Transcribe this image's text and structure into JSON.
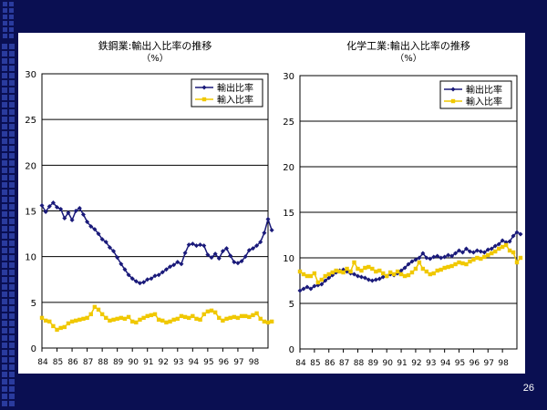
{
  "slide": {
    "page_number": "26",
    "colors": {
      "background": "#0a0f52",
      "accent_squares": "#2a3b9e",
      "card": "#ffffff"
    }
  },
  "chart_data": [
    {
      "type": "line",
      "title": "鉄鋼業:輸出入比率の推移",
      "subtitle": "（%）",
      "xlabel": "",
      "ylabel": "",
      "ylim": [
        0,
        30
      ],
      "yticks": [
        0,
        5,
        10,
        15,
        20,
        25,
        30
      ],
      "xlim": [
        1984,
        1999
      ],
      "xticks": [
        "84",
        "85",
        "86",
        "87",
        "88",
        "89",
        "90",
        "91",
        "92",
        "93",
        "94",
        "95",
        "96",
        "97",
        "98"
      ],
      "grid": true,
      "legend": "top-right",
      "x_step_years": 0.25,
      "series": [
        {
          "name": "輸出比率",
          "color": "#1a1a7a",
          "marker": "diamond",
          "values": [
            15.6,
            14.9,
            15.5,
            15.9,
            15.4,
            15.2,
            14.2,
            14.8,
            14.0,
            15.0,
            15.3,
            14.6,
            13.8,
            13.3,
            13.0,
            12.5,
            11.9,
            11.6,
            11.0,
            10.6,
            9.9,
            9.2,
            8.6,
            8.0,
            7.6,
            7.3,
            7.1,
            7.2,
            7.5,
            7.6,
            7.9,
            8.0,
            8.3,
            8.6,
            8.9,
            9.1,
            9.4,
            9.2,
            10.4,
            11.3,
            11.4,
            11.2,
            11.3,
            11.2,
            10.2,
            9.9,
            10.3,
            9.8,
            10.6,
            10.9,
            10.1,
            9.4,
            9.3,
            9.5,
            10.0,
            10.7,
            10.9,
            11.2,
            11.6,
            12.6,
            14.1,
            12.9
          ]
        },
        {
          "name": "輸入比率",
          "color": "#f0c800",
          "marker": "square",
          "values": [
            3.3,
            3.0,
            2.9,
            2.4,
            2.0,
            2.2,
            2.3,
            2.7,
            2.9,
            3.0,
            3.1,
            3.2,
            3.3,
            3.7,
            4.5,
            4.2,
            3.7,
            3.3,
            3.0,
            3.1,
            3.2,
            3.3,
            3.2,
            3.4,
            2.9,
            2.8,
            3.1,
            3.3,
            3.5,
            3.6,
            3.7,
            3.1,
            3.0,
            2.8,
            2.9,
            3.1,
            3.2,
            3.5,
            3.4,
            3.3,
            3.5,
            3.2,
            3.1,
            3.7,
            4.0,
            4.1,
            3.9,
            3.3,
            3.0,
            3.2,
            3.3,
            3.4,
            3.3,
            3.5,
            3.5,
            3.4,
            3.6,
            3.8,
            3.2,
            2.9,
            2.8,
            2.9
          ]
        }
      ]
    },
    {
      "type": "line",
      "title": "化学工業:輸出入比率の推移",
      "subtitle": "（%）",
      "xlabel": "",
      "ylabel": "",
      "ylim": [
        0,
        30
      ],
      "yticks": [
        0,
        5,
        10,
        15,
        20,
        25,
        30
      ],
      "xlim": [
        1984,
        1999
      ],
      "xticks": [
        "84",
        "85",
        "86",
        "87",
        "88",
        "89",
        "90",
        "91",
        "92",
        "93",
        "94",
        "95",
        "96",
        "97",
        "98"
      ],
      "grid": true,
      "legend": "top-right",
      "x_step_years": 0.25,
      "series": [
        {
          "name": "輸出比率",
          "color": "#1a1a7a",
          "marker": "diamond",
          "values": [
            6.4,
            6.6,
            6.8,
            6.6,
            6.9,
            7.0,
            7.1,
            7.5,
            7.8,
            8.1,
            8.4,
            8.6,
            8.7,
            8.5,
            8.3,
            8.2,
            8.0,
            7.9,
            7.8,
            7.6,
            7.5,
            7.6,
            7.7,
            7.9,
            8.0,
            8.2,
            8.1,
            8.3,
            8.6,
            8.9,
            9.3,
            9.6,
            9.8,
            10.0,
            10.5,
            10.0,
            9.9,
            10.1,
            10.2,
            10.0,
            10.1,
            10.3,
            10.2,
            10.5,
            10.8,
            10.6,
            11.0,
            10.7,
            10.6,
            10.8,
            10.7,
            10.6,
            10.9,
            11.0,
            11.3,
            11.5,
            11.9,
            11.7,
            11.8,
            12.4,
            12.8,
            12.6
          ]
        },
        {
          "name": "輸入比率",
          "color": "#f0c800",
          "marker": "square",
          "values": [
            8.5,
            8.2,
            8.0,
            8.0,
            8.3,
            7.3,
            7.6,
            8.0,
            8.2,
            8.4,
            8.6,
            8.5,
            8.4,
            8.8,
            8.5,
            9.5,
            8.8,
            8.6,
            8.9,
            9.0,
            8.8,
            8.5,
            8.6,
            8.3,
            8.0,
            8.4,
            8.2,
            8.5,
            8.2,
            8.0,
            8.1,
            8.4,
            8.8,
            9.5,
            8.8,
            8.5,
            8.2,
            8.3,
            8.6,
            8.7,
            8.9,
            9.0,
            9.1,
            9.3,
            9.5,
            9.4,
            9.3,
            9.6,
            9.8,
            10.0,
            9.9,
            10.1,
            10.3,
            10.5,
            10.7,
            11.0,
            11.2,
            11.4,
            10.8,
            10.6,
            9.5,
            10.0
          ]
        }
      ]
    }
  ]
}
